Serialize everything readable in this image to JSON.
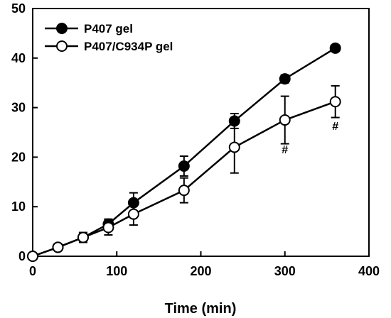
{
  "chart_data": {
    "type": "line",
    "title": "",
    "xlabel": "Time (min)",
    "ylabel": "",
    "xlim": [
      0,
      400
    ],
    "ylim": [
      0,
      50
    ],
    "xticks": [
      0,
      100,
      200,
      300,
      400
    ],
    "yticks": [
      0,
      10,
      20,
      30,
      40,
      50
    ],
    "xtick_labels": [
      "0",
      "100",
      "200",
      "300",
      "400"
    ],
    "ytick_labels": [
      "0",
      "10",
      "20",
      "30",
      "40",
      "50"
    ],
    "grid": false,
    "legend_position": "top-left",
    "series": [
      {
        "name": "P407 gel",
        "marker": "filled-circle",
        "x": [
          0,
          30,
          60,
          90,
          120,
          180,
          240,
          300,
          360
        ],
        "y": [
          0,
          1.8,
          3.8,
          6.5,
          10.8,
          18.2,
          27.3,
          35.8,
          42.0
        ],
        "err": [
          0,
          0,
          1.0,
          1.0,
          2.0,
          2.0,
          1.5,
          0.8,
          0.6
        ]
      },
      {
        "name": "P407/C934P gel",
        "marker": "open-circle",
        "x": [
          0,
          30,
          60,
          90,
          120,
          180,
          240,
          300,
          360
        ],
        "y": [
          0,
          1.8,
          3.8,
          5.8,
          8.5,
          13.3,
          22.0,
          27.5,
          31.2
        ],
        "err": [
          0,
          0,
          1.0,
          1.5,
          2.2,
          2.5,
          5.2,
          4.8,
          3.2
        ]
      }
    ],
    "annotations": [
      {
        "text": "#",
        "x": 300,
        "y": 20.8
      },
      {
        "text": "#",
        "x": 360,
        "y": 25.5
      }
    ]
  }
}
